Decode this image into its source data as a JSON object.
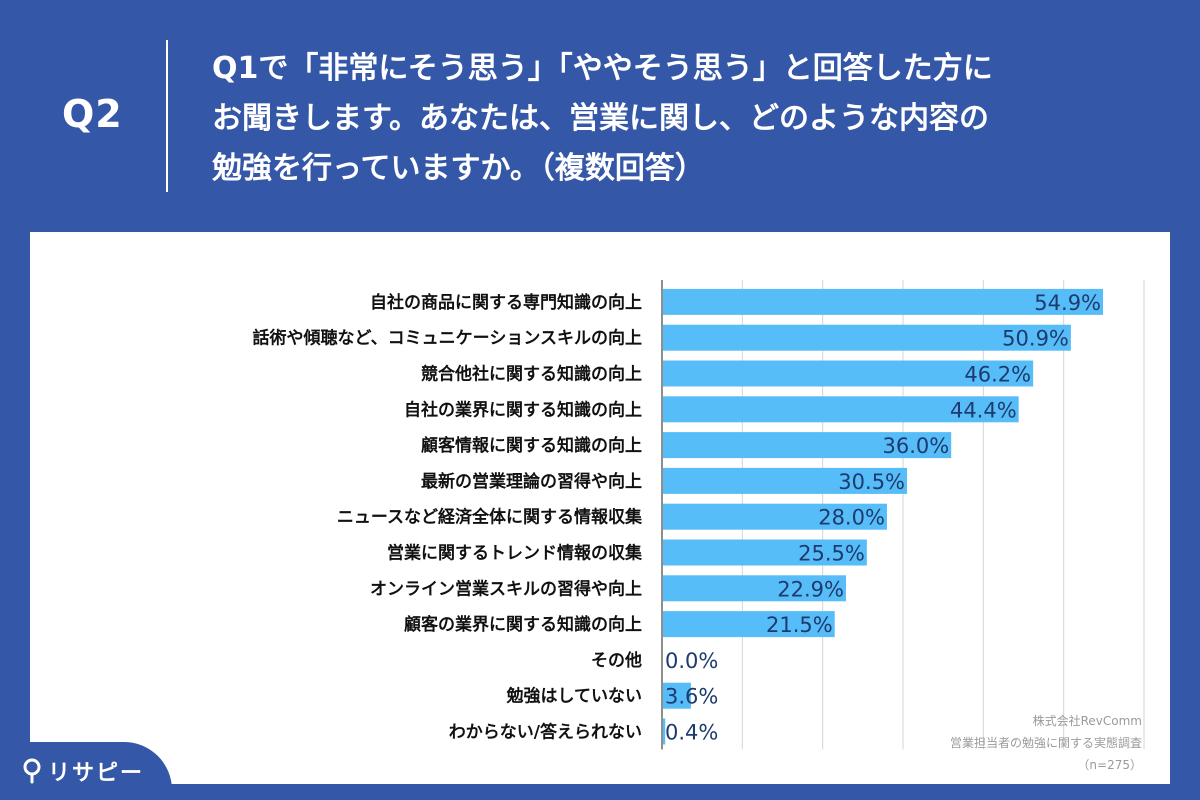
{
  "header": {
    "question_id": "Q2",
    "question_line1": "Q1で「非常にそう思う」「ややそう思う」と回答した方に",
    "question_line2": "お聞きします。あなたは、営業に関し、どのような内容の",
    "question_line3": "勉強を行っていますか。（複数回答）"
  },
  "credit": {
    "company": "株式会社RevComm",
    "survey": "営業担当者の勉強に関する実態調査",
    "sample": "（n=275）"
  },
  "logo": {
    "text": "リサピー",
    "icon": "pin-icon"
  },
  "colors": {
    "bar": "#56bdf8",
    "header": "#3557a8",
    "value_label": "#1d3b6e",
    "grid": "#d4d4d4"
  },
  "chart_data": {
    "type": "bar",
    "orientation": "horizontal",
    "categories": [
      "自社の商品に関する専門知識の向上",
      "話術や傾聴など、コミュニケーションスキルの向上",
      "競合他社に関する知識の向上",
      "自社の業界に関する知識の向上",
      "顧客情報に関する知識の向上",
      "最新の営業理論の習得や向上",
      "ニュースなど経済全体に関する情報収集",
      "営業に関するトレンド情報の収集",
      "オンライン営業スキルの習得や向上",
      "顧客の業界に関する知識の向上",
      "その他",
      "勉強はしていない",
      "わからない/答えられない"
    ],
    "values": [
      54.9,
      50.9,
      46.2,
      44.4,
      36.0,
      30.5,
      28.0,
      25.5,
      22.9,
      21.5,
      0.0,
      3.6,
      0.4
    ],
    "value_labels": [
      "54.9%",
      "50.9%",
      "46.2%",
      "44.4%",
      "36.0%",
      "30.5%",
      "28.0%",
      "25.5%",
      "22.9%",
      "21.5%",
      "0.0%",
      "3.6%",
      "0.4%"
    ],
    "xlim": [
      0,
      60
    ],
    "grid": true
  }
}
